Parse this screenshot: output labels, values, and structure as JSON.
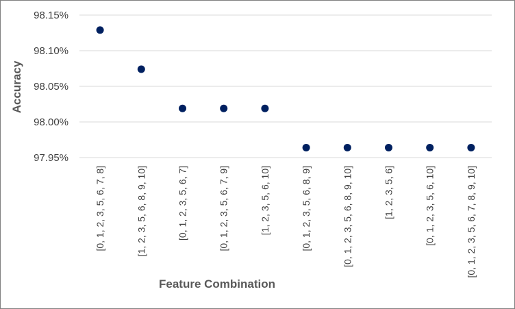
{
  "chart_data": {
    "type": "scatter",
    "title": "",
    "xlabel": "Feature Combination",
    "ylabel": "Accuracy",
    "categories": [
      "[0, 1, 2, 3, 5, 6, 7, 8]",
      "[1, 2, 3, 5, 6, 8, 9, 10]",
      "[0, 1, 2, 3, 5, 6, 7]",
      "[0, 1, 2, 3, 5, 6, 7, 9]",
      "[1, 2, 3, 5, 6, 10]",
      "[0, 1, 2, 3, 5, 6, 8, 9]",
      "[0, 1, 2, 3, 5, 6, 8, 9, 10]",
      "[1, 2, 3, 5, 6]",
      "[0, 1, 2, 3, 5, 6, 10]",
      "[0, 1, 2, 3, 5, 6, 7, 8, 9, 10]"
    ],
    "values": [
      98.129,
      98.074,
      98.019,
      98.019,
      98.019,
      97.964,
      97.964,
      97.964,
      97.964,
      97.964
    ],
    "ylim": [
      97.95,
      98.15
    ],
    "yticks": [
      97.95,
      98.0,
      98.05,
      98.1,
      98.15
    ],
    "ytick_labels": [
      "97.95%",
      "98.00%",
      "98.05%",
      "98.10%",
      "98.15%"
    ],
    "grid": true,
    "legend": "none",
    "marker_color": "#002060"
  }
}
